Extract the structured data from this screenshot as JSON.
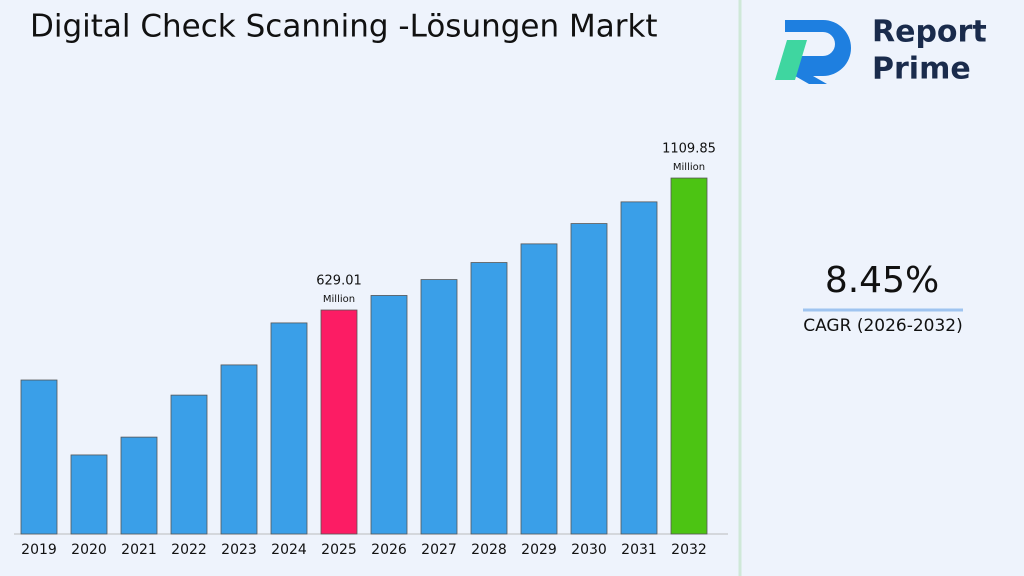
{
  "chart_data": {
    "type": "bar",
    "title": "Digital Check Scanning -Lösungen Markt",
    "categories": [
      "2019",
      "2020",
      "2021",
      "2022",
      "2023",
      "2024",
      "2025",
      "2026",
      "2027",
      "2028",
      "2029",
      "2030",
      "2031",
      "2032"
    ],
    "values": [
      374,
      101,
      166,
      319,
      429,
      582,
      629.01,
      682,
      740,
      802,
      870,
      944,
      1023,
      1109.85
    ],
    "colors": [
      "#3a9fe8",
      "#3a9fe8",
      "#3a9fe8",
      "#3a9fe8",
      "#3a9fe8",
      "#3a9fe8",
      "#fc1c64",
      "#3a9fe8",
      "#3a9fe8",
      "#3a9fe8",
      "#3a9fe8",
      "#3a9fe8",
      "#3a9fe8",
      "#4cc413"
    ],
    "labeled": [
      6,
      13
    ],
    "unit": "Million",
    "ylim": [
      -187,
      1212
    ]
  },
  "sidebar": {
    "brand": [
      "Report",
      "Prime"
    ],
    "cagr": "8.45%",
    "cagr_label": "CAGR (2026-2032)"
  }
}
